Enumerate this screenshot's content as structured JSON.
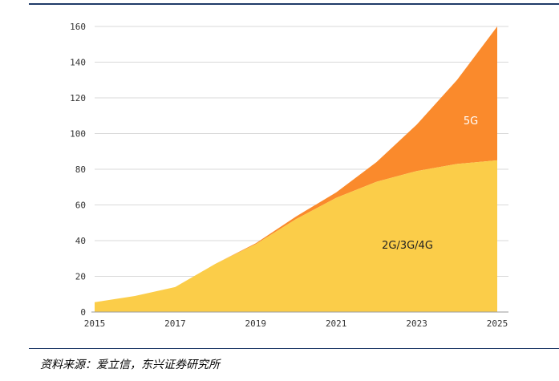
{
  "chart_data": {
    "type": "area",
    "stacked": true,
    "x": [
      2015,
      2016,
      2017,
      2018,
      2019,
      2020,
      2021,
      2022,
      2023,
      2024,
      2025
    ],
    "x_ticks": [
      "2015",
      "2017",
      "2019",
      "2021",
      "2023",
      "2025"
    ],
    "y_ticks": [
      "0",
      "20",
      "40",
      "60",
      "80",
      "100",
      "120",
      "140",
      "160"
    ],
    "ylim": [
      0,
      160
    ],
    "grid": "horizontal",
    "series": [
      {
        "name": "2G/3G/4G",
        "color": "#fbcd49",
        "values": [
          5.5,
          9,
          14,
          27,
          38,
          52,
          64,
          73,
          79,
          83,
          85
        ]
      },
      {
        "name": "5G",
        "color": "#fa8a2c",
        "values": [
          0,
          0,
          0,
          0,
          0.5,
          1.5,
          3,
          11,
          26,
          47,
          75
        ]
      }
    ]
  },
  "source_note": "资料来源：爱立信，东兴证券研究所"
}
